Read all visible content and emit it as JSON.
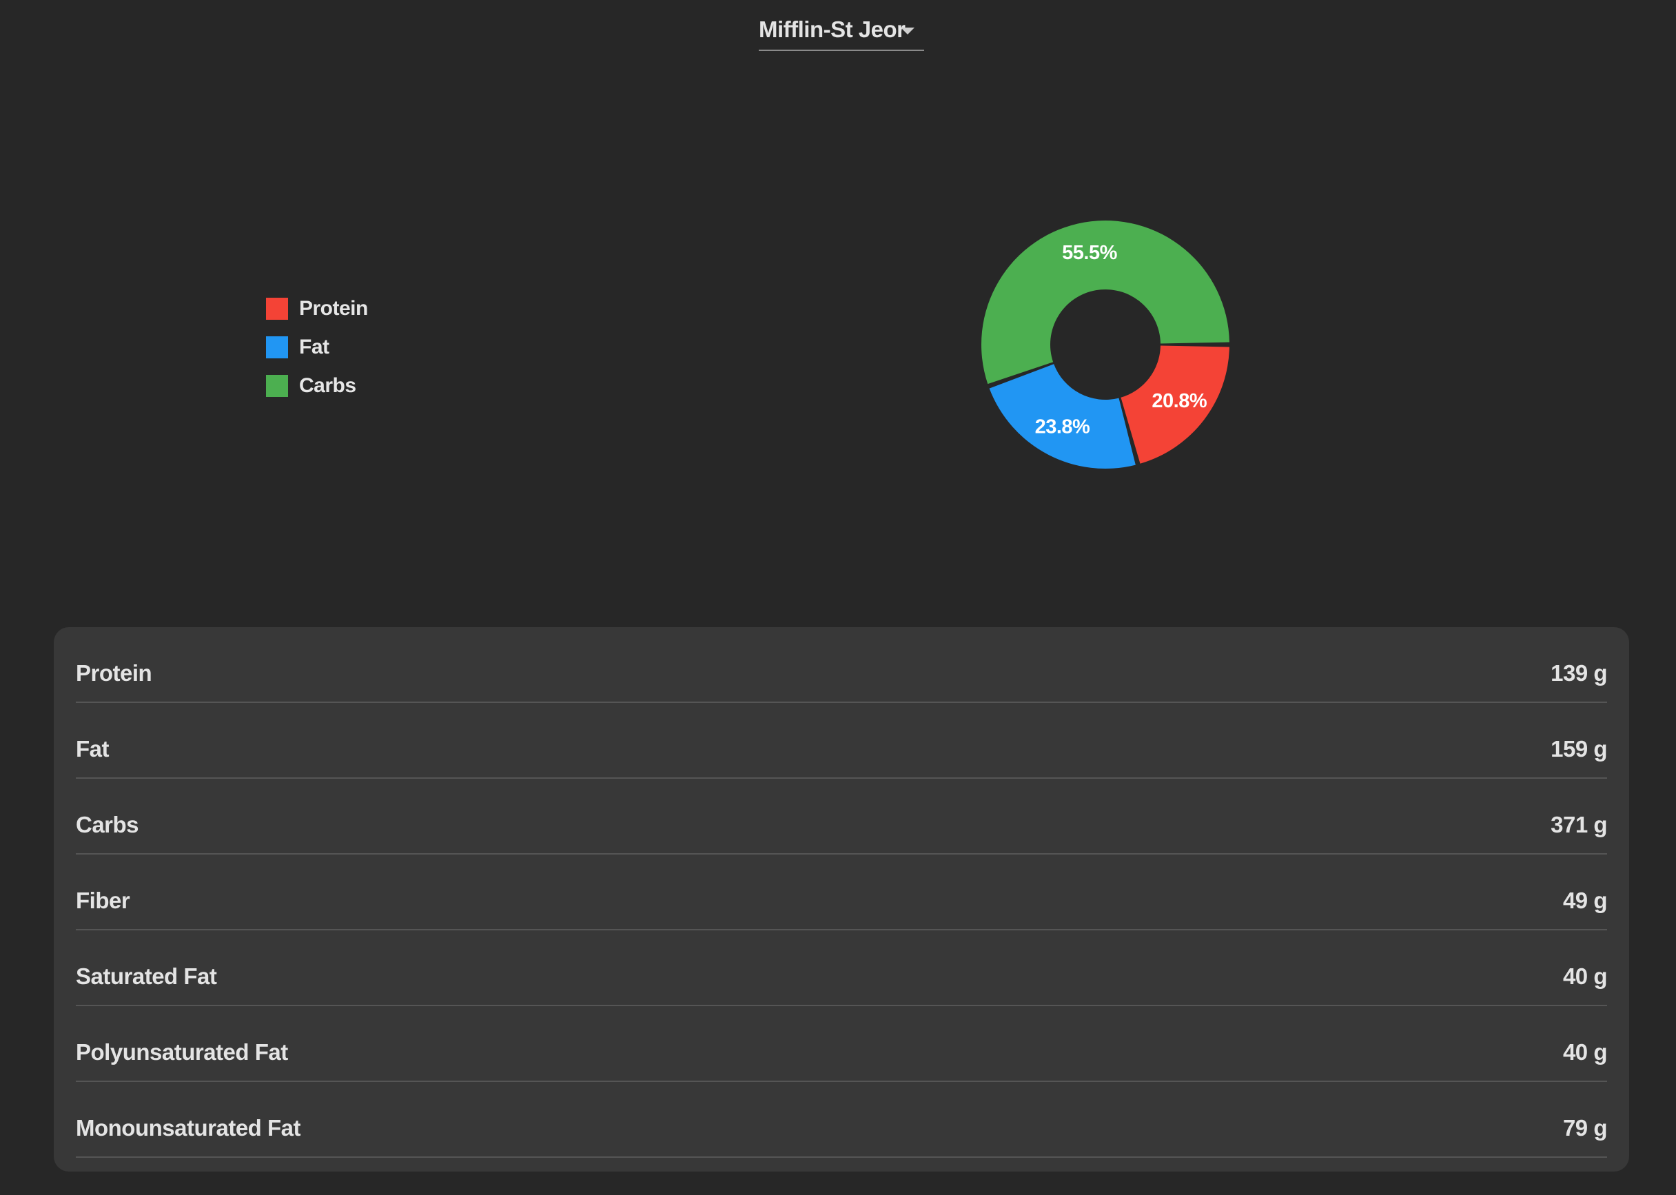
{
  "formula_selector": {
    "selected": "Mifflin-St Jeor"
  },
  "legend": {
    "items": [
      {
        "label": "Protein",
        "color": "#F44336"
      },
      {
        "label": "Fat",
        "color": "#2196F3"
      },
      {
        "label": "Carbs",
        "color": "#4CAF50"
      }
    ]
  },
  "chart_data": {
    "type": "pie",
    "subtype": "donut",
    "title": "",
    "categories": [
      "Protein",
      "Fat",
      "Carbs"
    ],
    "values": [
      20.8,
      23.8,
      55.5
    ],
    "labels": [
      "20.8%",
      "23.8%",
      "55.5%"
    ],
    "colors": [
      "#F44336",
      "#2196F3",
      "#4CAF50"
    ],
    "legend_position": "left"
  },
  "nutrients": [
    {
      "name": "Protein",
      "value": "139 g"
    },
    {
      "name": "Fat",
      "value": "159 g"
    },
    {
      "name": "Carbs",
      "value": "371 g"
    },
    {
      "name": "Fiber",
      "value": "49 g"
    },
    {
      "name": "Saturated Fat",
      "value": "40 g"
    },
    {
      "name": "Polyunsaturated Fat",
      "value": "40 g"
    },
    {
      "name": "Monounsaturated Fat",
      "value": "79 g"
    }
  ]
}
